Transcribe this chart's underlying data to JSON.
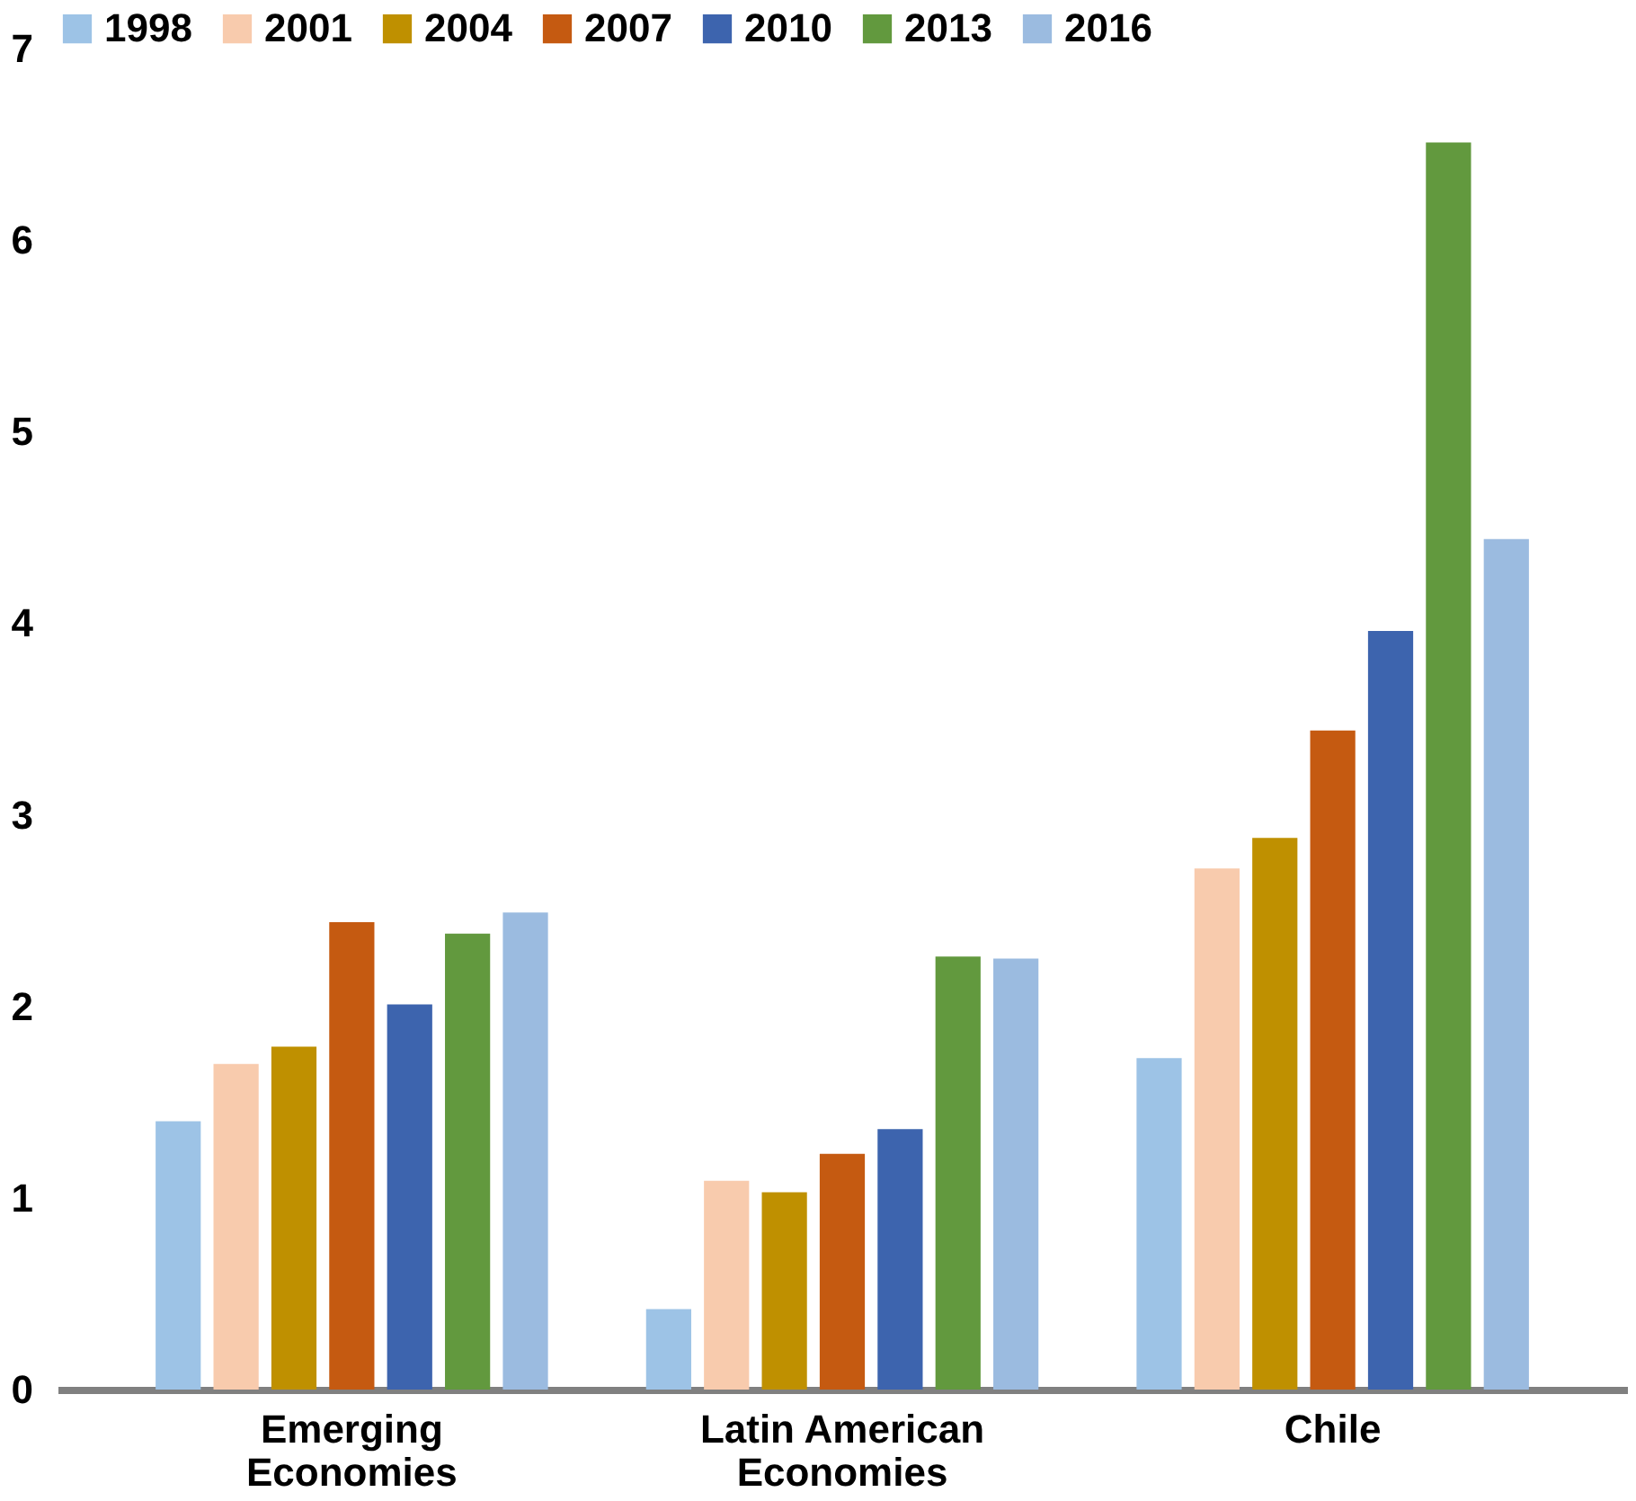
{
  "chart_data": {
    "type": "bar",
    "categories": [
      "Emerging Economies",
      "Latin American Economies",
      "Chile"
    ],
    "series": [
      {
        "name": "1998",
        "color": "#9dc3e6",
        "values": [
          1.4,
          0.42,
          1.73
        ]
      },
      {
        "name": "2001",
        "color": "#f8cbad",
        "values": [
          1.7,
          1.09,
          2.72
        ]
      },
      {
        "name": "2004",
        "color": "#bf9000",
        "values": [
          1.79,
          1.03,
          2.88
        ]
      },
      {
        "name": "2007",
        "color": "#c55a11",
        "values": [
          2.44,
          1.23,
          3.44
        ]
      },
      {
        "name": "2010",
        "color": "#3d64ae",
        "values": [
          2.01,
          1.36,
          3.96
        ]
      },
      {
        "name": "2013",
        "color": "#62993e",
        "values": [
          2.38,
          2.26,
          6.51
        ]
      },
      {
        "name": "2016",
        "color": "#9bbbe0",
        "values": [
          2.49,
          2.25,
          4.44
        ]
      }
    ],
    "ylim": [
      0,
      7
    ],
    "yticks": [
      0,
      1,
      2,
      3,
      4,
      5,
      6,
      7
    ],
    "grid": false,
    "legend": "top"
  }
}
